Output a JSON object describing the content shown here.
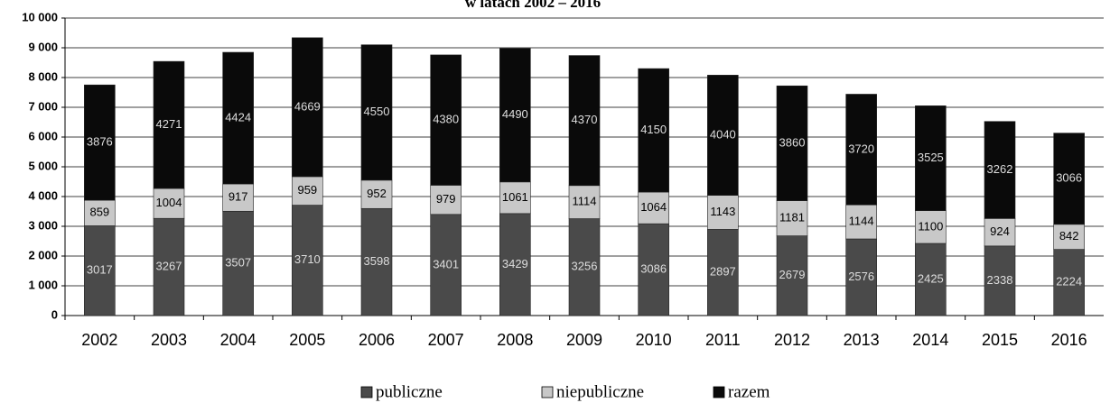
{
  "chart_data": {
    "type": "stacked_bar",
    "title": "w latach 2002 – 2016",
    "categories": [
      "2002",
      "2003",
      "2004",
      "2005",
      "2006",
      "2007",
      "2008",
      "2009",
      "2010",
      "2011",
      "2012",
      "2013",
      "2014",
      "2015",
      "2016"
    ],
    "series": [
      {
        "name": "publiczne",
        "color": "#4a4a4a",
        "values": [
          3017,
          3267,
          3507,
          3710,
          3598,
          3401,
          3429,
          3256,
          3086,
          2897,
          2679,
          2576,
          2425,
          2338,
          2224
        ]
      },
      {
        "name": "niepubliczne",
        "color": "#c8c8c8",
        "values": [
          859,
          1004,
          917,
          959,
          952,
          979,
          1061,
          1114,
          1064,
          1143,
          1181,
          1144,
          1100,
          924,
          842
        ]
      },
      {
        "name": "razem",
        "color": "#0a0a0a",
        "values": [
          3876,
          4271,
          4424,
          4669,
          4550,
          4380,
          4490,
          4370,
          4150,
          4040,
          3860,
          3720,
          3525,
          3262,
          3066
        ]
      }
    ],
    "ylim": [
      0,
      10000
    ],
    "yticks": [
      0,
      {
        "value": 1000,
        "label": "1 000"
      },
      {
        "value": 2000,
        "label": "2 000"
      },
      {
        "value": 3000,
        "label": "3 000"
      },
      {
        "value": 4000,
        "label": "4 000"
      },
      {
        "value": 5000,
        "label": "5 000"
      },
      {
        "value": 6000,
        "label": "6 000"
      },
      {
        "value": 7000,
        "label": "7 000"
      },
      {
        "value": 8000,
        "label": "8 000"
      },
      {
        "value": 9000,
        "label": "9 000"
      },
      {
        "value": 10000,
        "label": "10 000"
      }
    ],
    "grid": true,
    "legend": "bottom"
  }
}
